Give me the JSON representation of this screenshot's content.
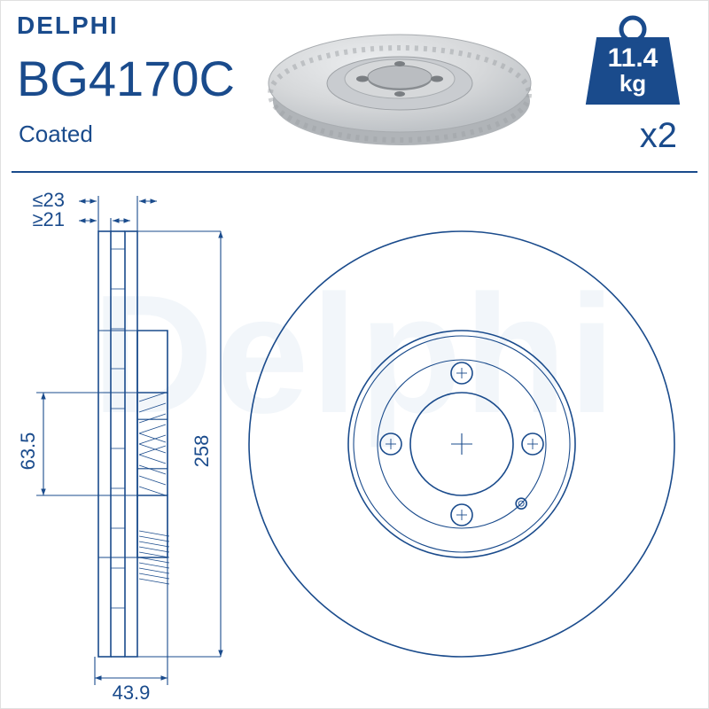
{
  "brand": "DELPHI",
  "part_number": "BG4170C",
  "coating_label": "Coated",
  "weight_value": "11.4",
  "weight_unit": "kg",
  "quantity_label": "x2",
  "watermark_text": "Delphi",
  "colors": {
    "primary": "#1a4b8c",
    "line": "#1a4b8c",
    "render_fill": "#d6d8da",
    "render_shadow": "#b8bcc0",
    "render_highlight": "#e8eaec",
    "bg": "#ffffff",
    "watermark": "#eef3f9"
  },
  "dimensions": {
    "thick_max": "≥21",
    "thick_min": "≤23",
    "hub_diameter": "63.5",
    "hub_width": "43.9",
    "disc_diameter": "258"
  },
  "disc": {
    "outer_r": 240,
    "face_inner_r": 128,
    "hub_r": 95,
    "bore_r": 58,
    "bolt_circle_r": 80,
    "bolt_hole_r": 12,
    "bolt_count": 4,
    "locator_r": 6
  },
  "stroke_width": 1.6,
  "stroke_thin": 1.1
}
